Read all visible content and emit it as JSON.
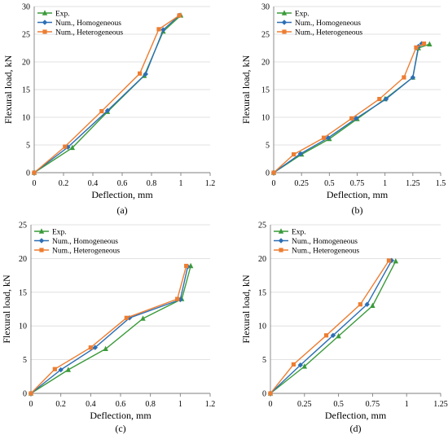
{
  "figure": {
    "panel_labels": [
      "(a)",
      "(b)",
      "(c)",
      "(d)"
    ]
  },
  "chart_data": [
    {
      "type": "line",
      "panel_label": "(a)",
      "xlabel": "Deflection, mm",
      "ylabel": "Flexural load, kN",
      "xlim": [
        0,
        1.2
      ],
      "ylim": [
        0,
        30
      ],
      "xticks": [
        "0",
        "0.2",
        "0.4",
        "0.6",
        "0.8",
        "1",
        "1.2"
      ],
      "yticks": [
        "0",
        "5",
        "10",
        "15",
        "20",
        "25",
        "30"
      ],
      "legend_position": "top-left",
      "series": [
        {
          "name": "Exp.",
          "color": "#3a9a3a",
          "marker": "triangle",
          "points": [
            [
              0,
              0
            ],
            [
              0.26,
              4.5
            ],
            [
              0.5,
              11.0
            ],
            [
              0.75,
              17.5
            ],
            [
              0.88,
              25.5
            ],
            [
              1.0,
              28.4
            ]
          ]
        },
        {
          "name": "Num., Homogeneous",
          "color": "#2d6fb5",
          "marker": "diamond",
          "points": [
            [
              0,
              0
            ],
            [
              0.23,
              4.6
            ],
            [
              0.5,
              11.2
            ],
            [
              0.76,
              17.8
            ],
            [
              0.88,
              25.8
            ],
            [
              0.99,
              28.4
            ]
          ]
        },
        {
          "name": "Num., Heterogeneous",
          "color": "#ed7d31",
          "marker": "square",
          "points": [
            [
              0,
              0
            ],
            [
              0.21,
              4.7
            ],
            [
              0.46,
              11.1
            ],
            [
              0.72,
              17.9
            ],
            [
              0.85,
              25.9
            ],
            [
              0.99,
              28.4
            ]
          ]
        }
      ]
    },
    {
      "type": "line",
      "panel_label": "(b)",
      "xlabel": "Deflection, mm",
      "ylabel": "Flexural load, kN",
      "xlim": [
        0,
        1.5
      ],
      "ylim": [
        0,
        30
      ],
      "xticks": [
        "0",
        "0.25",
        "0.5",
        "0.75",
        "1",
        "1.25",
        "1.5"
      ],
      "yticks": [
        "0",
        "5",
        "10",
        "15",
        "20",
        "25",
        "30"
      ],
      "legend_position": "top-left",
      "series": [
        {
          "name": "Exp.",
          "color": "#3a9a3a",
          "marker": "triangle",
          "points": [
            [
              0,
              0
            ],
            [
              0.25,
              3.3
            ],
            [
              0.5,
              6.1
            ],
            [
              0.75,
              9.7
            ],
            [
              1.0,
              13.3
            ],
            [
              1.25,
              17.2
            ],
            [
              1.3,
              22.5
            ],
            [
              1.4,
              23.2
            ]
          ]
        },
        {
          "name": "Num., Homogeneous",
          "color": "#2d6fb5",
          "marker": "diamond",
          "points": [
            [
              0,
              0
            ],
            [
              0.24,
              3.4
            ],
            [
              0.49,
              6.3
            ],
            [
              0.74,
              9.8
            ],
            [
              1.01,
              13.3
            ],
            [
              1.25,
              17.2
            ],
            [
              1.3,
              22.8
            ],
            [
              1.33,
              23.3
            ]
          ]
        },
        {
          "name": "Num., Heterogeneous",
          "color": "#ed7d31",
          "marker": "square",
          "points": [
            [
              0,
              0
            ],
            [
              0.18,
              3.3
            ],
            [
              0.45,
              6.3
            ],
            [
              0.7,
              9.8
            ],
            [
              0.95,
              13.3
            ],
            [
              1.17,
              17.2
            ],
            [
              1.28,
              22.6
            ],
            [
              1.35,
              23.3
            ]
          ]
        }
      ]
    },
    {
      "type": "line",
      "panel_label": "(c)",
      "xlabel": "Deflection, mm",
      "ylabel": "Flexural load, kN",
      "xlim": [
        0,
        1.2
      ],
      "ylim": [
        0,
        25
      ],
      "xticks": [
        "0",
        "0.2",
        "0.4",
        "0.6",
        "0.8",
        "1",
        "1.2"
      ],
      "yticks": [
        "0",
        "5",
        "10",
        "15",
        "20",
        "25"
      ],
      "legend_position": "top-left",
      "series": [
        {
          "name": "Exp.",
          "color": "#3a9a3a",
          "marker": "triangle",
          "points": [
            [
              0,
              0
            ],
            [
              0.25,
              3.5
            ],
            [
              0.5,
              6.6
            ],
            [
              0.75,
              11.1
            ],
            [
              1.01,
              14.0
            ],
            [
              1.07,
              18.9
            ]
          ]
        },
        {
          "name": "Num., Homogeneous",
          "color": "#2d6fb5",
          "marker": "diamond",
          "points": [
            [
              0,
              0
            ],
            [
              0.2,
              3.5
            ],
            [
              0.43,
              6.8
            ],
            [
              0.66,
              11.2
            ],
            [
              1.0,
              13.9
            ],
            [
              1.05,
              18.8
            ]
          ]
        },
        {
          "name": "Num., Heterogeneous",
          "color": "#ed7d31",
          "marker": "square",
          "points": [
            [
              0,
              0
            ],
            [
              0.16,
              3.6
            ],
            [
              0.4,
              6.8
            ],
            [
              0.64,
              11.2
            ],
            [
              0.98,
              14.0
            ],
            [
              1.04,
              18.9
            ]
          ]
        }
      ]
    },
    {
      "type": "line",
      "panel_label": "(d)",
      "xlabel": "Deflection, mm",
      "ylabel": "Flexural load, kN",
      "xlim": [
        0,
        1.25
      ],
      "ylim": [
        0,
        25
      ],
      "xticks": [
        "0",
        "0.25",
        "0.5",
        "0.75",
        "1",
        "1.25"
      ],
      "yticks": [
        "0",
        "5",
        "10",
        "15",
        "20",
        "25"
      ],
      "legend_position": "top-left",
      "series": [
        {
          "name": "Exp.",
          "color": "#3a9a3a",
          "marker": "triangle",
          "points": [
            [
              0,
              0
            ],
            [
              0.25,
              4.0
            ],
            [
              0.5,
              8.5
            ],
            [
              0.75,
              13.0
            ],
            [
              0.92,
              19.6
            ]
          ]
        },
        {
          "name": "Num., Homogeneous",
          "color": "#2d6fb5",
          "marker": "diamond",
          "points": [
            [
              0,
              0
            ],
            [
              0.22,
              4.2
            ],
            [
              0.46,
              8.6
            ],
            [
              0.71,
              13.2
            ],
            [
              0.89,
              19.7
            ]
          ]
        },
        {
          "name": "Num., Heterogeneous",
          "color": "#ed7d31",
          "marker": "square",
          "points": [
            [
              0,
              0
            ],
            [
              0.17,
              4.3
            ],
            [
              0.41,
              8.6
            ],
            [
              0.66,
              13.2
            ],
            [
              0.87,
              19.7
            ]
          ]
        }
      ]
    }
  ]
}
